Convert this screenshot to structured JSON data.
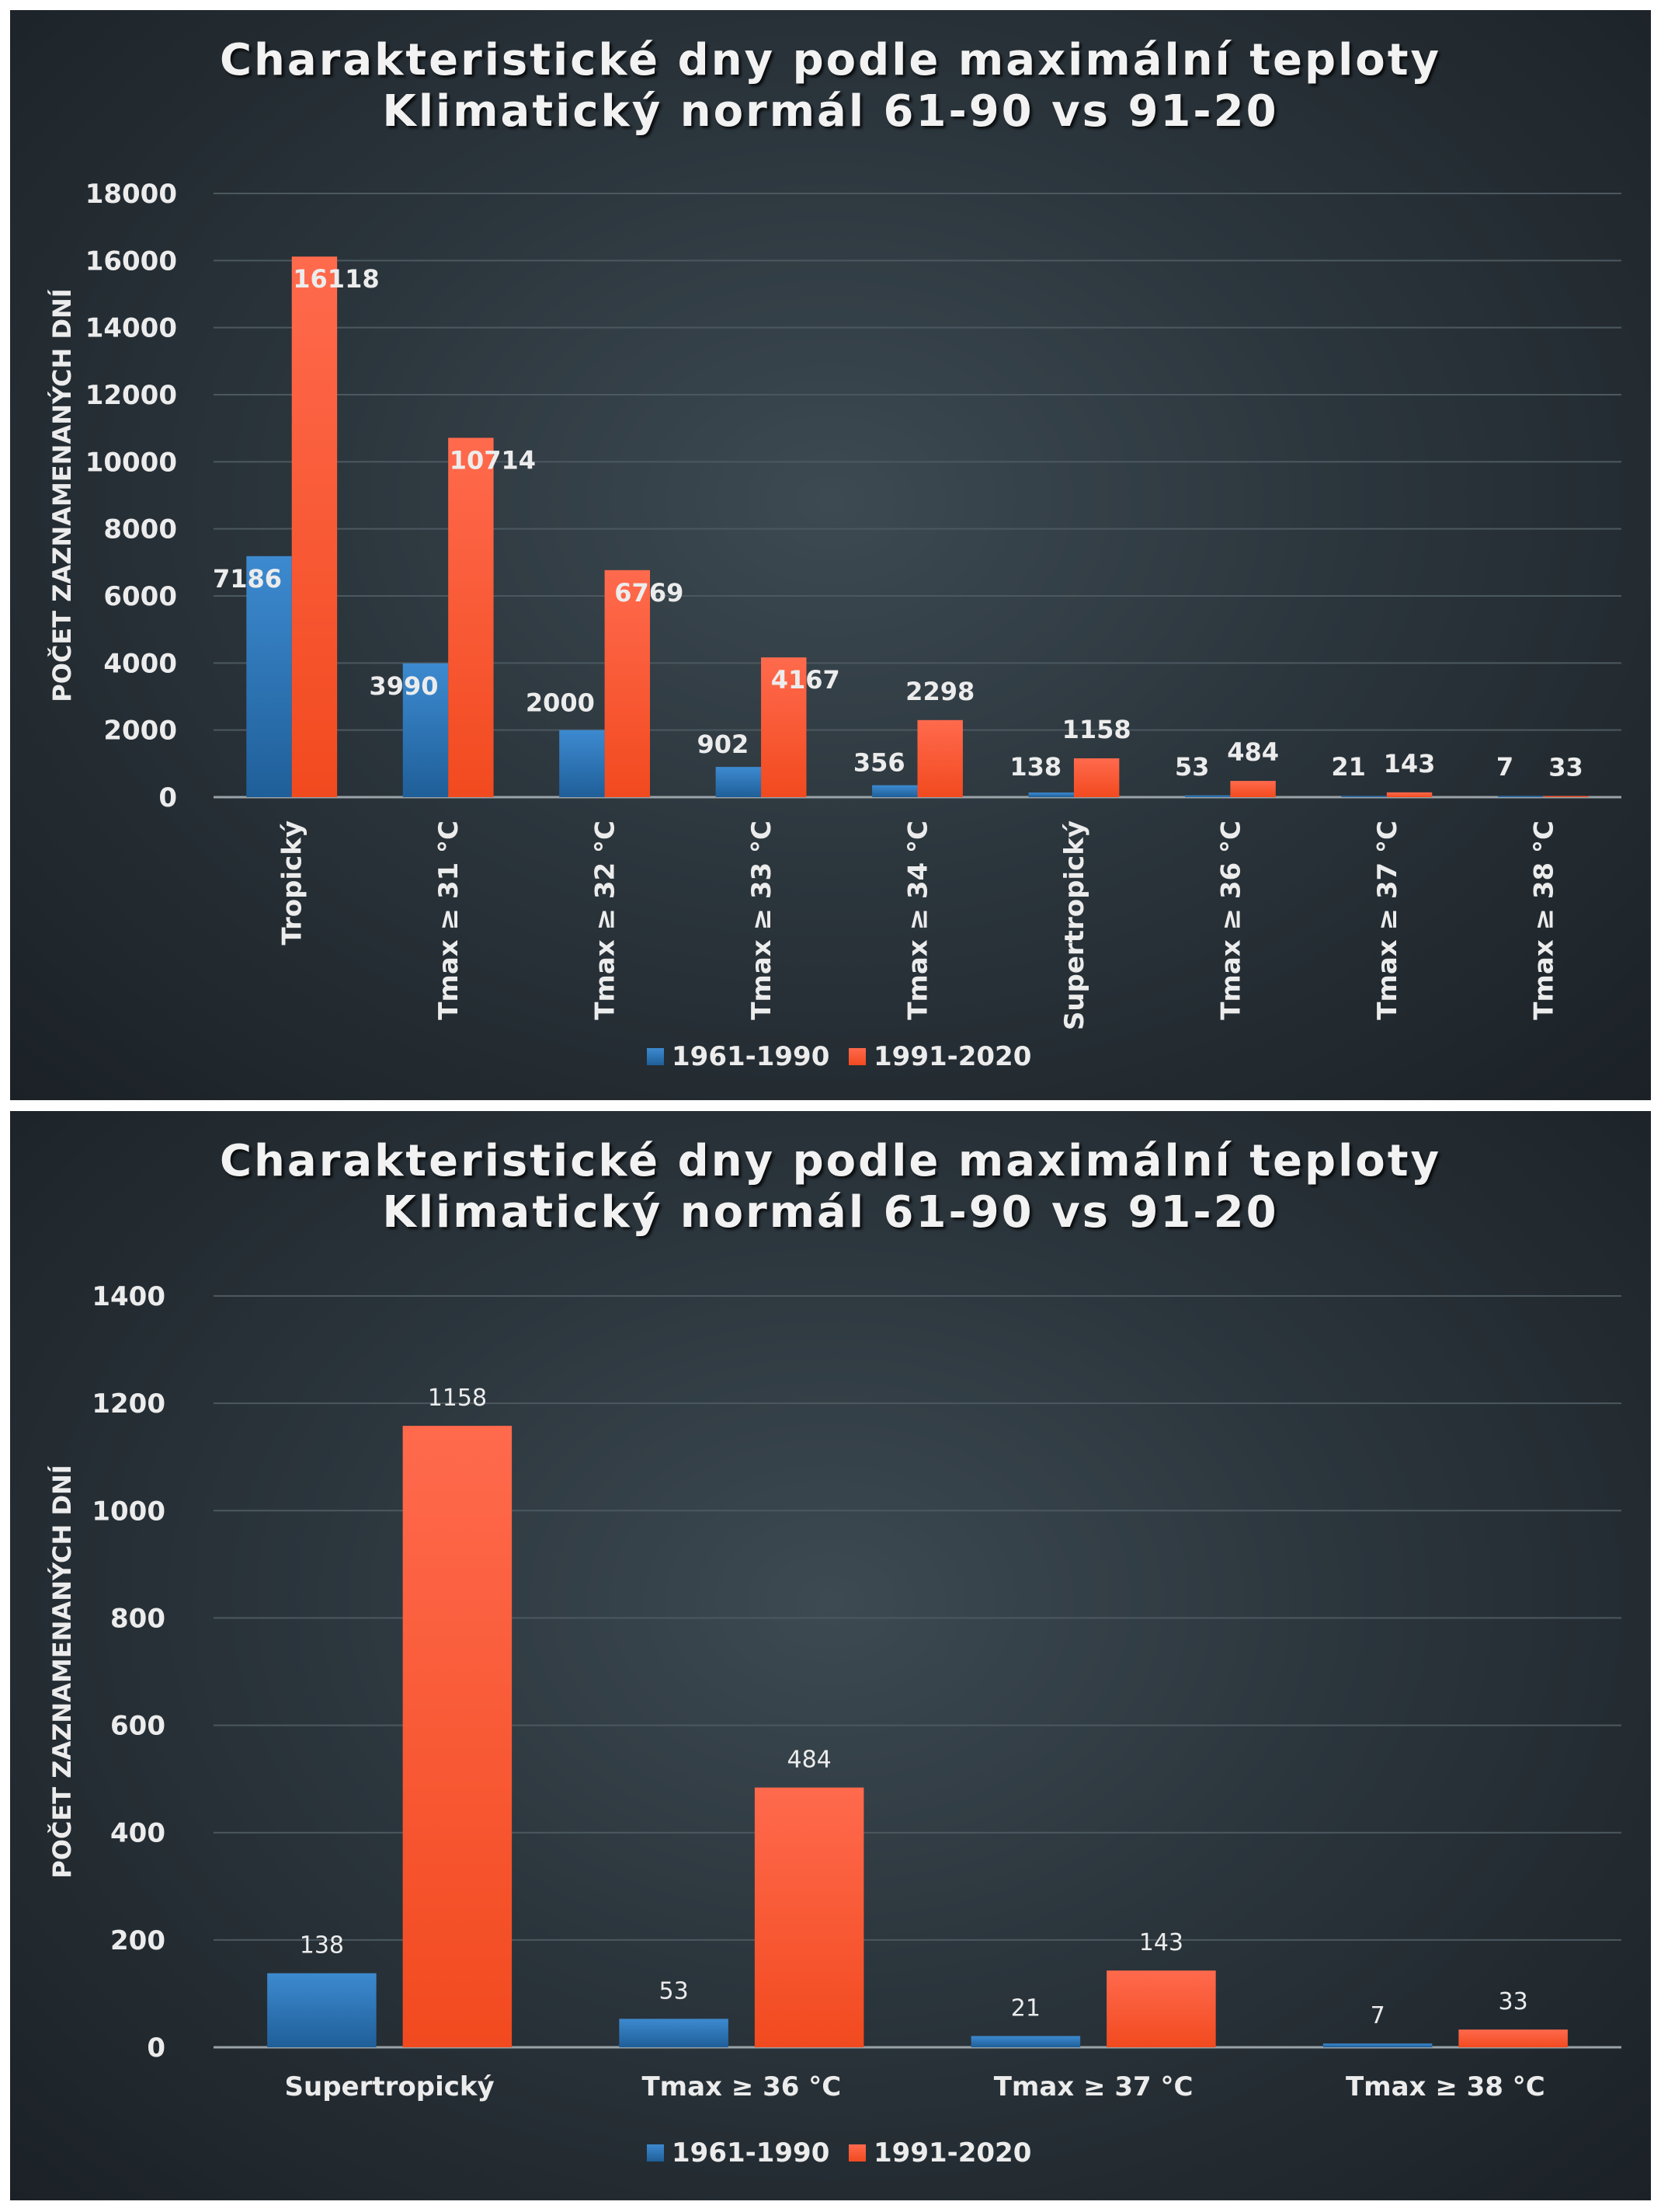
{
  "chart_data": [
    {
      "type": "bar",
      "title_line1": "Charakteristické dny podle maximální teploty",
      "title_line2": "Klimatický normál 61-90 vs 91-20",
      "ylabel": "POČET ZAZNAMENANÝCH DNÍ",
      "xlabel": "",
      "ylim": [
        0,
        18000
      ],
      "yticks": [
        "0",
        "2000",
        "4000",
        "6000",
        "8000",
        "10000",
        "12000",
        "14000",
        "16000",
        "18000"
      ],
      "grid": true,
      "legend_position": "bottom",
      "categories": [
        "Tropický",
        "Tmax ≥ 31 °C",
        "Tmax ≥ 32 °C",
        "Tmax ≥ 33 °C",
        "Tmax ≥ 34 °C",
        "Supertropický",
        "Tmax ≥ 36 °C",
        "Tmax ≥ 37 °C",
        "Tmax ≥ 38 °C"
      ],
      "series": [
        {
          "name": "1961-1990",
          "color": "#2e75b6",
          "values": [
            7186,
            3990,
            2000,
            902,
            356,
            138,
            53,
            21,
            7
          ],
          "labels": [
            "7186",
            "3990",
            "2000",
            "902",
            "356",
            "138",
            "53",
            "21",
            "7"
          ]
        },
        {
          "name": "1991-2020",
          "color": "#ff5a36",
          "values": [
            16118,
            10714,
            6769,
            4167,
            2298,
            1158,
            484,
            143,
            33
          ],
          "labels": [
            "16118",
            "10714",
            "6769",
            "4167",
            "2298",
            "1158",
            "484",
            "143",
            "33"
          ]
        }
      ]
    },
    {
      "type": "bar",
      "title_line1": "Charakteristické dny podle maximální teploty",
      "title_line2": "Klimatický normál 61-90 vs 91-20",
      "ylabel": "POČET ZAZNAMENANÝCH DNÍ",
      "xlabel": "",
      "ylim": [
        0,
        1400
      ],
      "yticks": [
        "0",
        "200",
        "400",
        "600",
        "800",
        "1000",
        "1200",
        "1400"
      ],
      "grid": true,
      "legend_position": "bottom",
      "categories": [
        "Supertropický",
        "Tmax ≥ 36 °C",
        "Tmax ≥ 37 °C",
        "Tmax ≥ 38 °C"
      ],
      "series": [
        {
          "name": "1961-1990",
          "color": "#2e75b6",
          "values": [
            138,
            53,
            21,
            7
          ],
          "labels": [
            "138",
            "53",
            "21",
            "7"
          ]
        },
        {
          "name": "1991-2020",
          "color": "#ff5a36",
          "values": [
            1158,
            484,
            143,
            33
          ],
          "labels": [
            "1158",
            "484",
            "143",
            "33"
          ]
        }
      ]
    }
  ]
}
